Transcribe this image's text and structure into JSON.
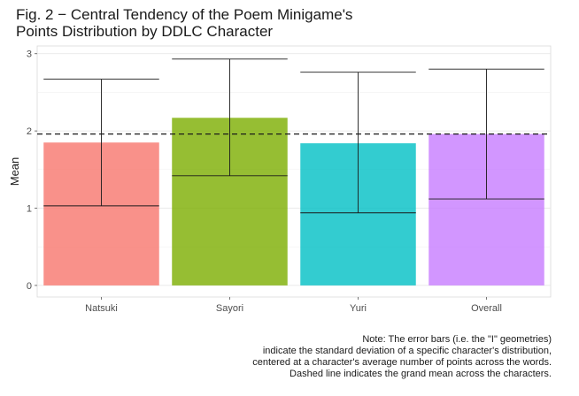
{
  "chart_data": {
    "type": "bar",
    "title_lines": [
      "Fig. 2 − Central Tendency of the Poem Minigame's",
      "Points Distribution by DDLC Character"
    ],
    "xlabel": "",
    "ylabel": "Mean",
    "categories": [
      "Natsuki",
      "Sayori",
      "Yuri",
      "Overall"
    ],
    "values": [
      1.85,
      2.17,
      1.84,
      1.96
    ],
    "error_bars": [
      {
        "low": 1.03,
        "high": 2.67
      },
      {
        "low": 1.42,
        "high": 2.93
      },
      {
        "low": 0.94,
        "high": 2.76
      },
      {
        "low": 1.12,
        "high": 2.8
      }
    ],
    "bar_colors": [
      "#F8766D",
      "#7CAE00",
      "#00BFC4",
      "#C77CFF"
    ],
    "bar_opacity": 0.8,
    "grand_mean": 1.96,
    "ylim": [
      -0.15,
      3.1
    ],
    "yticks": [
      0,
      1,
      2,
      3
    ],
    "grid": true,
    "legend": "none",
    "caption_lines": [
      "Note: The error bars (i.e. the \"I\" geometries)",
      "indicate the standard deviation of a specific character's distribution,",
      "centered at a character's average number of points across the words.",
      "Dashed line indicates the grand mean across the characters."
    ]
  }
}
